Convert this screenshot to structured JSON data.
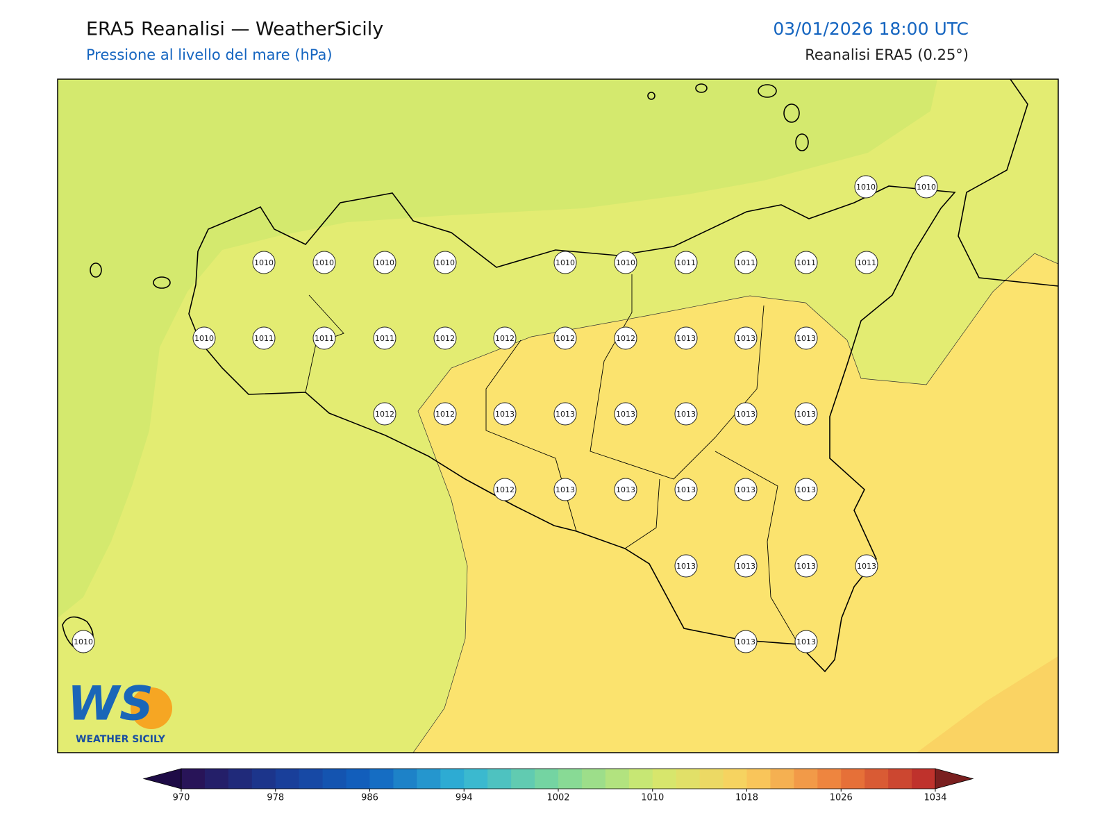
{
  "header": {
    "title": "ERA5 Reanalisi — WeatherSicily",
    "subtitle": "Pressione al livello del mare (hPa)",
    "datetime": "03/01/2026 18:00 UTC",
    "source": "Reanalisi ERA5 (0.25°)"
  },
  "stations": [
    1010,
    1010,
    1010,
    1010,
    1010,
    1010,
    1010,
    1010,
    1011,
    1011,
    1011,
    1011,
    1010,
    1011,
    1011,
    1011,
    1012,
    1012,
    1012,
    1012,
    1013,
    1013,
    1013,
    1012,
    1012,
    1013,
    1013,
    1013,
    1013,
    1013,
    1013,
    1012,
    1013,
    1013,
    1013,
    1013,
    1013,
    1013,
    1013,
    1013,
    1013,
    1010,
    1013,
    1013
  ],
  "colorbar": {
    "min": 970,
    "max": 1034,
    "step": 2,
    "ticks": [
      970,
      978,
      986,
      994,
      1002,
      1010,
      1018,
      1026,
      1034
    ],
    "colors": [
      "#2a0f4f",
      "#1a3a94",
      "#1163c0",
      "#31b5d6",
      "#7dd89a",
      "#d2e96e",
      "#fbd05e",
      "#ec7a3a",
      "#b8282a"
    ],
    "under": "#1e0b46",
    "over": "#7a1f1f"
  },
  "logo": {
    "mark": "WS",
    "name": "WEATHER SICILY"
  }
}
